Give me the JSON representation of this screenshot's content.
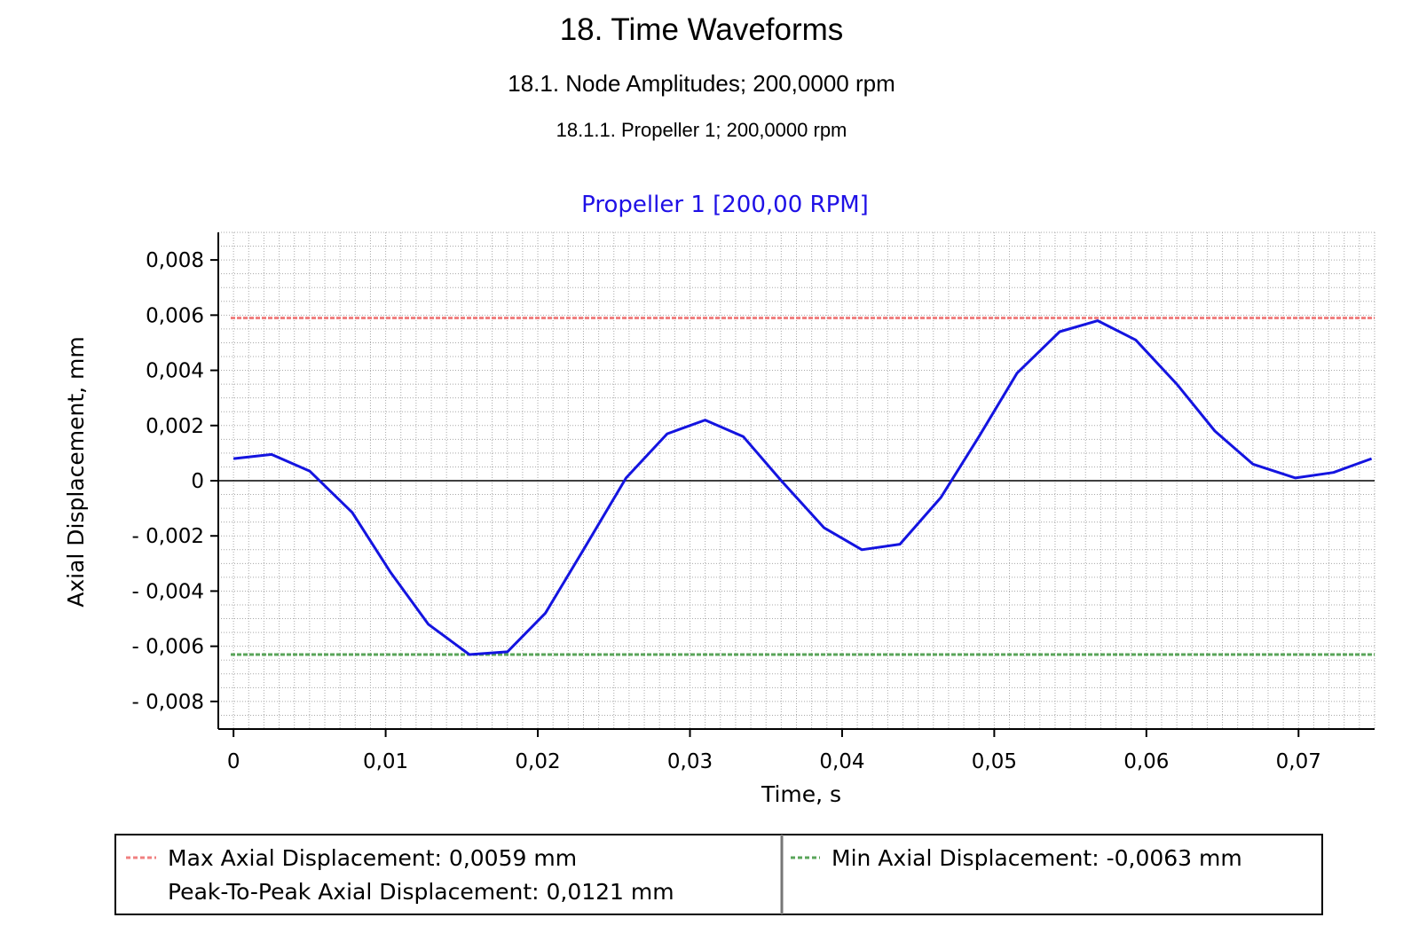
{
  "report": {
    "heading1": "18.  Time Waveforms",
    "heading2": "18.1.  Node Amplitudes; 200,0000 rpm",
    "heading3": "18.1.1.  Propeller 1; 200,0000 rpm"
  },
  "chart_data": {
    "type": "line",
    "title": "Propeller 1 [200,00 RPM]",
    "xlabel": "Time, s",
    "ylabel": "Axial Displacement, mm",
    "xlim": [
      -0.001,
      0.075
    ],
    "ylim": [
      -0.009,
      0.009
    ],
    "xticks": [
      0,
      0.01,
      0.02,
      0.03,
      0.04,
      0.05,
      0.06,
      0.07
    ],
    "xtick_labels": [
      "0",
      "0,01",
      "0,02",
      "0,03",
      "0,04",
      "0,05",
      "0,06",
      "0,07"
    ],
    "yticks": [
      0.008,
      0.006,
      0.004,
      0.002,
      0,
      -0.002,
      -0.004,
      -0.006,
      -0.008
    ],
    "ytick_labels": [
      "0,008",
      "0,006",
      "0,004",
      "0,002",
      "0",
      "- 0,002",
      "- 0,004",
      "- 0,006",
      "- 0,008"
    ],
    "grid": true,
    "series": [
      {
        "color": "#1414e0",
        "x": [
          0,
          0.0025,
          0.005,
          0.0078,
          0.0103,
          0.0128,
          0.0155,
          0.018,
          0.0205,
          0.023,
          0.0258,
          0.0285,
          0.031,
          0.0335,
          0.036,
          0.0388,
          0.0413,
          0.0438,
          0.0465,
          0.049,
          0.0515,
          0.0543,
          0.0568,
          0.0593,
          0.062,
          0.0645,
          0.067,
          0.0698,
          0.0723,
          0.0748
        ],
        "y": [
          0.0008,
          0.00095,
          0.00035,
          -0.00115,
          -0.0033,
          -0.0052,
          -0.0063,
          -0.0062,
          -0.0048,
          -0.0025,
          0.0001,
          0.0017,
          0.0022,
          0.0016,
          0.0,
          -0.0017,
          -0.0025,
          -0.0023,
          -0.0006,
          0.0016,
          0.0039,
          0.0054,
          0.0058,
          0.0051,
          0.0035,
          0.0018,
          0.0006,
          0.0001,
          0.0003,
          0.0008
        ]
      }
    ],
    "reference_lines": [
      {
        "name": "Max Axial Displacement",
        "y": 0.0059,
        "color": "#f08080"
      },
      {
        "name": "Min Axial Displacement",
        "y": -0.0063,
        "color": "#5aa55a"
      }
    ],
    "zero_line": {
      "y": 0,
      "color": "#000000"
    },
    "legend": {
      "position": "bottom",
      "entries": [
        {
          "text": "Max Axial Displacement: 0,0059 mm",
          "color": "#f08080"
        },
        {
          "text": "Peak-To-Peak Axial Displacement: 0,0121 mm"
        },
        {
          "text": "Min Axial Displacement: -0,0063 mm",
          "color": "#5aa55a"
        }
      ]
    }
  }
}
